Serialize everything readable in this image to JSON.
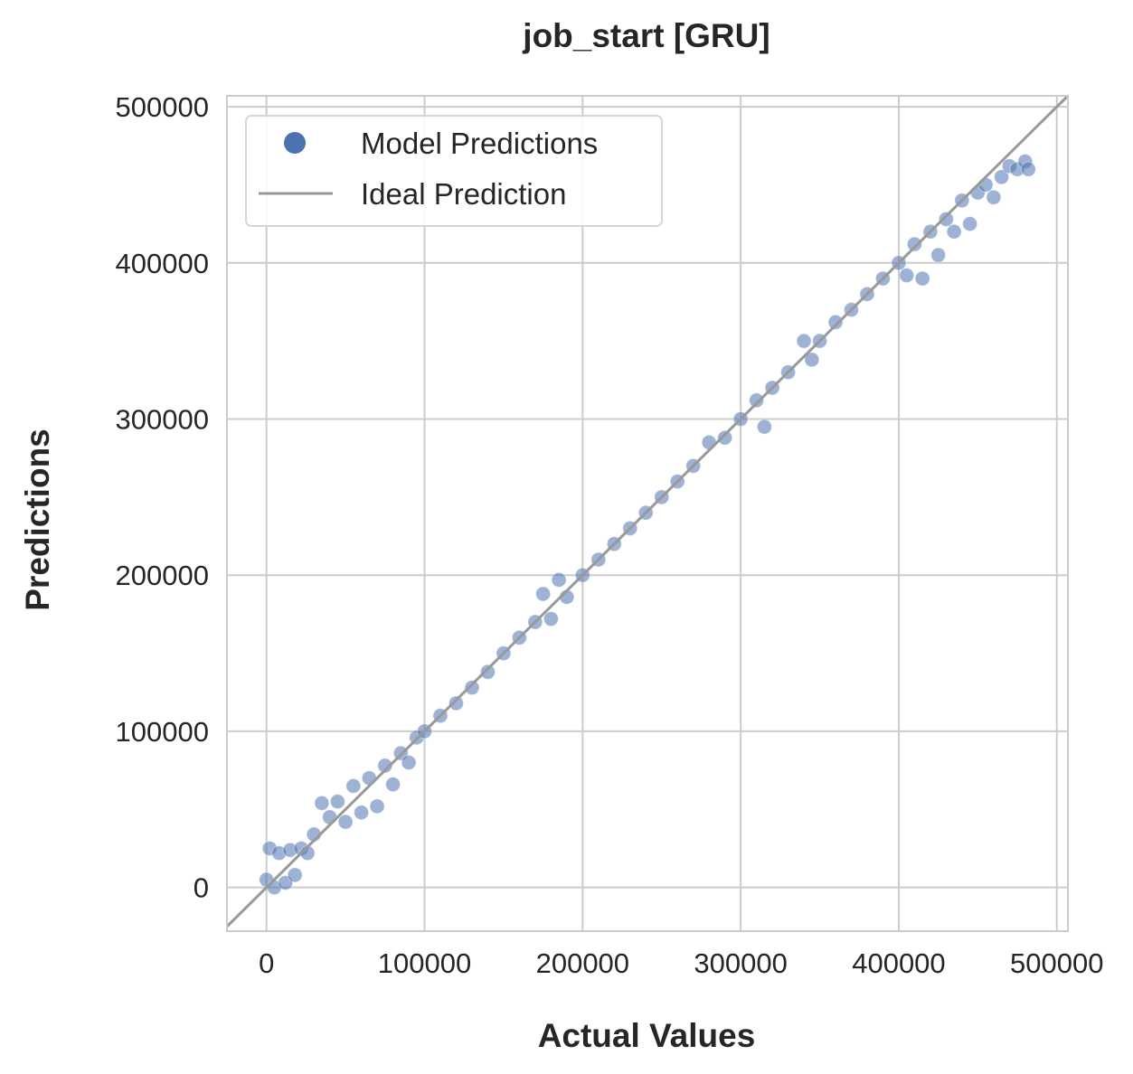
{
  "chart_data": {
    "type": "scatter",
    "title": "job_start [GRU]",
    "xlabel": "Actual Values",
    "ylabel": "Predictions",
    "xlim": [
      -25000,
      507000
    ],
    "ylim": [
      -28000,
      507000
    ],
    "xticks": [
      0,
      100000,
      200000,
      300000,
      400000,
      500000
    ],
    "yticks": [
      0,
      100000,
      200000,
      300000,
      400000,
      500000
    ],
    "xtick_labels": [
      "0",
      "100000",
      "200000",
      "300000",
      "400000",
      "500000"
    ],
    "ytick_labels": [
      "0",
      "100000",
      "200000",
      "300000",
      "400000",
      "500000"
    ],
    "grid": true,
    "legend_position": "top-left",
    "colors": {
      "points": "#4c72b0",
      "ideal_line": "#999999",
      "grid": "#cccccc",
      "frame": "#cccccc"
    },
    "series": [
      {
        "name": "Model Predictions",
        "kind": "scatter",
        "x_range": [
          0,
          482000
        ],
        "points": [
          [
            0,
            5000
          ],
          [
            2000,
            25000
          ],
          [
            5000,
            0
          ],
          [
            8000,
            22000
          ],
          [
            12000,
            3000
          ],
          [
            15000,
            24000
          ],
          [
            18000,
            8000
          ],
          [
            22000,
            25000
          ],
          [
            26000,
            22000
          ],
          [
            30000,
            34000
          ],
          [
            35000,
            54000
          ],
          [
            40000,
            45000
          ],
          [
            45000,
            55000
          ],
          [
            50000,
            42000
          ],
          [
            55000,
            65000
          ],
          [
            60000,
            48000
          ],
          [
            65000,
            70000
          ],
          [
            70000,
            52000
          ],
          [
            75000,
            78000
          ],
          [
            80000,
            66000
          ],
          [
            85000,
            86000
          ],
          [
            90000,
            80000
          ],
          [
            95000,
            96000
          ],
          [
            100000,
            100000
          ],
          [
            110000,
            110000
          ],
          [
            120000,
            118000
          ],
          [
            130000,
            128000
          ],
          [
            140000,
            138000
          ],
          [
            150000,
            150000
          ],
          [
            160000,
            160000
          ],
          [
            170000,
            170000
          ],
          [
            175000,
            188000
          ],
          [
            180000,
            172000
          ],
          [
            185000,
            197000
          ],
          [
            190000,
            186000
          ],
          [
            200000,
            200000
          ],
          [
            210000,
            210000
          ],
          [
            220000,
            220000
          ],
          [
            230000,
            230000
          ],
          [
            240000,
            240000
          ],
          [
            250000,
            250000
          ],
          [
            260000,
            260000
          ],
          [
            270000,
            270000
          ],
          [
            280000,
            285000
          ],
          [
            290000,
            288000
          ],
          [
            300000,
            300000
          ],
          [
            310000,
            312000
          ],
          [
            315000,
            295000
          ],
          [
            320000,
            320000
          ],
          [
            330000,
            330000
          ],
          [
            340000,
            350000
          ],
          [
            345000,
            338000
          ],
          [
            350000,
            350000
          ],
          [
            360000,
            362000
          ],
          [
            370000,
            370000
          ],
          [
            380000,
            380000
          ],
          [
            390000,
            390000
          ],
          [
            400000,
            400000
          ],
          [
            405000,
            392000
          ],
          [
            410000,
            412000
          ],
          [
            415000,
            390000
          ],
          [
            420000,
            420000
          ],
          [
            425000,
            405000
          ],
          [
            430000,
            428000
          ],
          [
            435000,
            420000
          ],
          [
            440000,
            440000
          ],
          [
            445000,
            425000
          ],
          [
            450000,
            445000
          ],
          [
            455000,
            450000
          ],
          [
            460000,
            442000
          ],
          [
            465000,
            455000
          ],
          [
            470000,
            462000
          ],
          [
            475000,
            460000
          ],
          [
            480000,
            465000
          ],
          [
            482000,
            460000
          ]
        ]
      },
      {
        "name": "Ideal Prediction",
        "kind": "line",
        "x": [
          -25000,
          507000
        ],
        "y": [
          -25000,
          507000
        ]
      }
    ],
    "legend": [
      "Model Predictions",
      "Ideal Prediction"
    ]
  }
}
